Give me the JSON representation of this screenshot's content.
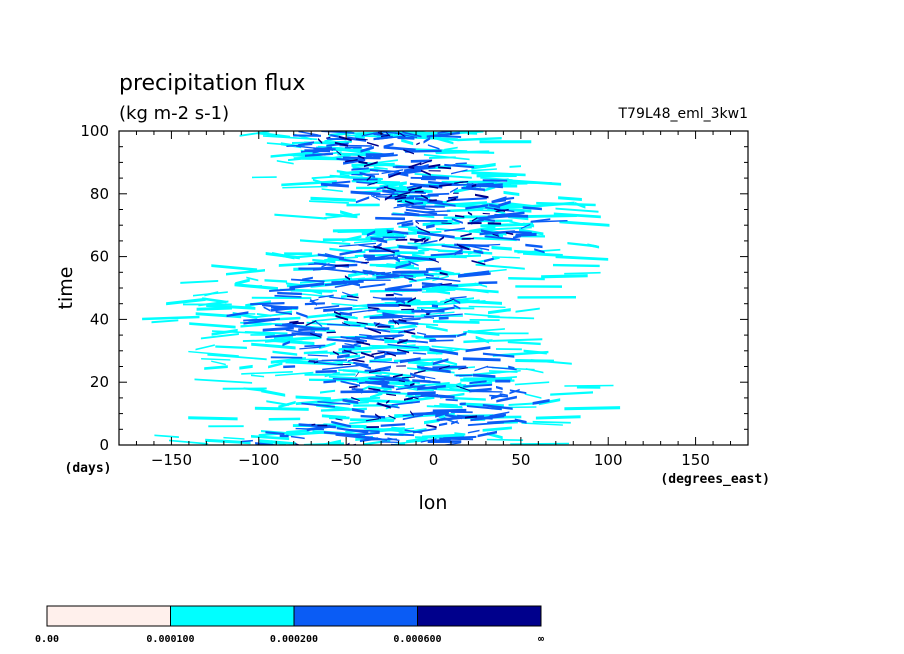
{
  "chart_data": {
    "type": "heatmap",
    "title": "precipitation flux",
    "units": "(kg m-2 s-1)",
    "run_label": "T79L48_eml_3kw1",
    "xlabel": "lon",
    "xunits": "(degrees_east)",
    "ylabel": "time",
    "yunits": "(days)",
    "xlim": [
      -180,
      180
    ],
    "ylim": [
      0,
      100
    ],
    "xticks": [
      -150,
      -100,
      -50,
      0,
      50,
      100,
      150
    ],
    "yticks": [
      0,
      20,
      40,
      60,
      80,
      100
    ],
    "colorbar": {
      "levels": [
        "0.00",
        "0.000100",
        "0.000200",
        "0.000600",
        "∞"
      ],
      "colors": [
        "#fff0ec",
        "#00ffff",
        "#0a5cf5",
        "#00008c"
      ]
    },
    "rain_band": {
      "description_units": "degrees_east",
      "west_edge_lon": [
        -160,
        -140,
        -120,
        -100,
        -80
      ],
      "east_edge_lon": [
        85,
        100,
        110,
        90,
        80
      ],
      "core_lon_range": [
        -80,
        40
      ]
    }
  }
}
